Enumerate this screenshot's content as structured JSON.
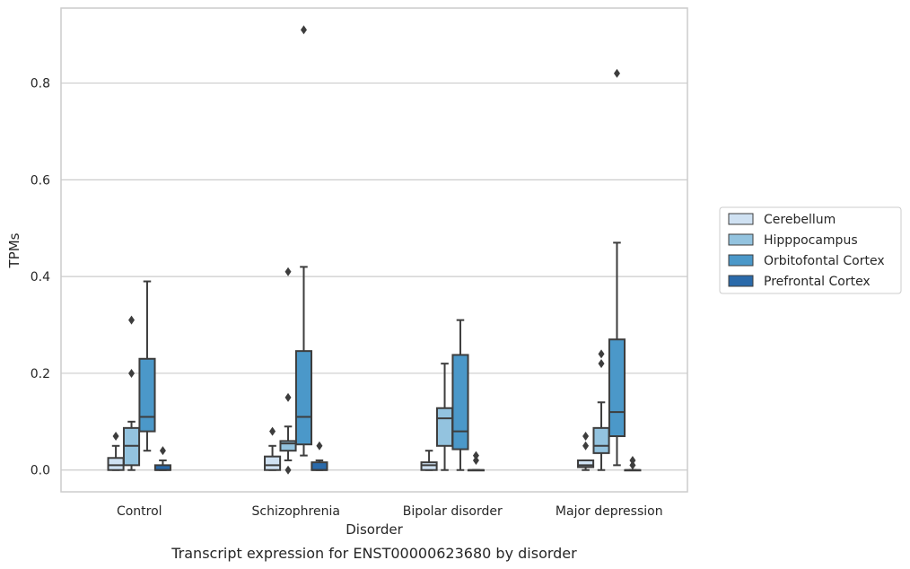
{
  "chart_data": {
    "type": "box",
    "caption": "Transcript expression for ENST00000623680 by disorder",
    "xlabel": "Disorder",
    "ylabel": "TPMs",
    "ylim": [
      -0.045,
      0.955
    ],
    "yticks": [
      0.0,
      0.2,
      0.4,
      0.6,
      0.8
    ],
    "ytick_labels": [
      "0.0",
      "0.2",
      "0.4",
      "0.6",
      "0.8"
    ],
    "grid": "horizontal",
    "legend_position": "right",
    "categories": [
      "Control",
      "Schizophrenia",
      "Bipolar disorder",
      "Major depression"
    ],
    "series": [
      {
        "name": "Cerebellum",
        "color": "#cfe1f2",
        "boxes": [
          {
            "whisker_low": 0.0,
            "q1": 0.0,
            "median": 0.01,
            "q3": 0.025,
            "whisker_high": 0.05,
            "outliers": [
              0.07
            ]
          },
          {
            "whisker_low": 0.0,
            "q1": 0.0,
            "median": 0.01,
            "q3": 0.028,
            "whisker_high": 0.05,
            "outliers": [
              0.08
            ]
          },
          {
            "whisker_low": 0.0,
            "q1": 0.0,
            "median": 0.01,
            "q3": 0.016,
            "whisker_high": 0.04,
            "outliers": []
          },
          {
            "whisker_low": 0.0,
            "q1": 0.006,
            "median": 0.01,
            "q3": 0.02,
            "whisker_high": 0.02,
            "outliers": [
              0.05,
              0.07
            ]
          }
        ]
      },
      {
        "name": "Hipppocampus",
        "color": "#93c3df",
        "boxes": [
          {
            "whisker_low": 0.0,
            "q1": 0.01,
            "median": 0.05,
            "q3": 0.087,
            "whisker_high": 0.1,
            "outliers": [
              0.2,
              0.31
            ]
          },
          {
            "whisker_low": 0.02,
            "q1": 0.04,
            "median": 0.055,
            "q3": 0.06,
            "whisker_high": 0.09,
            "outliers": [
              0.0,
              0.15,
              0.41
            ]
          },
          {
            "whisker_low": 0.0,
            "q1": 0.05,
            "median": 0.107,
            "q3": 0.128,
            "whisker_high": 0.22,
            "outliers": []
          },
          {
            "whisker_low": 0.0,
            "q1": 0.035,
            "median": 0.05,
            "q3": 0.087,
            "whisker_high": 0.14,
            "outliers": [
              0.22,
              0.24
            ]
          }
        ]
      },
      {
        "name": "Orbitofontal Cortex",
        "color": "#4b98c9",
        "boxes": [
          {
            "whisker_low": 0.04,
            "q1": 0.08,
            "median": 0.11,
            "q3": 0.23,
            "whisker_high": 0.39,
            "outliers": []
          },
          {
            "whisker_low": 0.03,
            "q1": 0.053,
            "median": 0.11,
            "q3": 0.246,
            "whisker_high": 0.42,
            "outliers": [
              0.91
            ]
          },
          {
            "whisker_low": 0.0,
            "q1": 0.043,
            "median": 0.08,
            "q3": 0.238,
            "whisker_high": 0.31,
            "outliers": []
          },
          {
            "whisker_low": 0.01,
            "q1": 0.07,
            "median": 0.12,
            "q3": 0.27,
            "whisker_high": 0.47,
            "outliers": [
              0.82
            ]
          }
        ]
      },
      {
        "name": "Prefrontal Cortex",
        "color": "#2a6aaa",
        "boxes": [
          {
            "whisker_low": 0.0,
            "q1": 0.0,
            "median": 0.0,
            "q3": 0.01,
            "whisker_high": 0.02,
            "outliers": [
              0.04
            ]
          },
          {
            "whisker_low": 0.0,
            "q1": 0.0,
            "median": 0.0,
            "q3": 0.016,
            "whisker_high": 0.02,
            "outliers": [
              0.05
            ]
          },
          {
            "whisker_low": 0.0,
            "q1": 0.0,
            "median": 0.0,
            "q3": 0.0,
            "whisker_high": 0.0,
            "outliers": [
              0.02,
              0.03
            ]
          },
          {
            "whisker_low": 0.0,
            "q1": 0.0,
            "median": 0.0,
            "q3": 0.0,
            "whisker_high": 0.0,
            "outliers": [
              0.01,
              0.02
            ]
          }
        ]
      }
    ]
  }
}
